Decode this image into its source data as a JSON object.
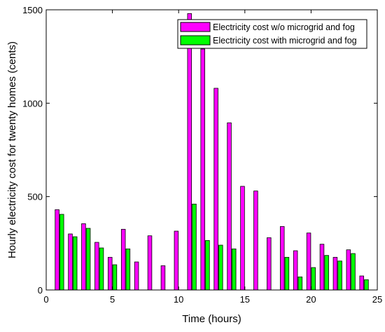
{
  "chart_data": {
    "type": "bar",
    "x": [
      1,
      2,
      3,
      4,
      5,
      6,
      7,
      8,
      9,
      10,
      11,
      12,
      13,
      14,
      15,
      16,
      17,
      18,
      19,
      20,
      21,
      22,
      23,
      24
    ],
    "series": [
      {
        "name": "Electricity cost w/o microgrid and fog",
        "color": "#ff00ff",
        "values": [
          430,
          300,
          355,
          255,
          175,
          325,
          150,
          290,
          130,
          315,
          1480,
          1290,
          1080,
          895,
          555,
          530,
          280,
          340,
          210,
          305,
          245,
          175,
          215,
          75
        ]
      },
      {
        "name": "Electricity cost with microgrid and fog",
        "color": "#00ff00",
        "values": [
          405,
          285,
          330,
          225,
          135,
          220,
          0,
          0,
          0,
          0,
          460,
          265,
          240,
          220,
          0,
          0,
          0,
          175,
          70,
          120,
          185,
          155,
          195,
          55
        ]
      }
    ],
    "xlabel": "Time (hours)",
    "ylabel": "Hourly electricity cost for twenty homes (cents)",
    "xlim": [
      0,
      25
    ],
    "ylim": [
      0,
      1500
    ],
    "xticks": [
      0,
      5,
      10,
      15,
      20,
      25
    ],
    "yticks": [
      0,
      500,
      1000,
      1500
    ],
    "legend_position": "top-right",
    "grid": false
  }
}
